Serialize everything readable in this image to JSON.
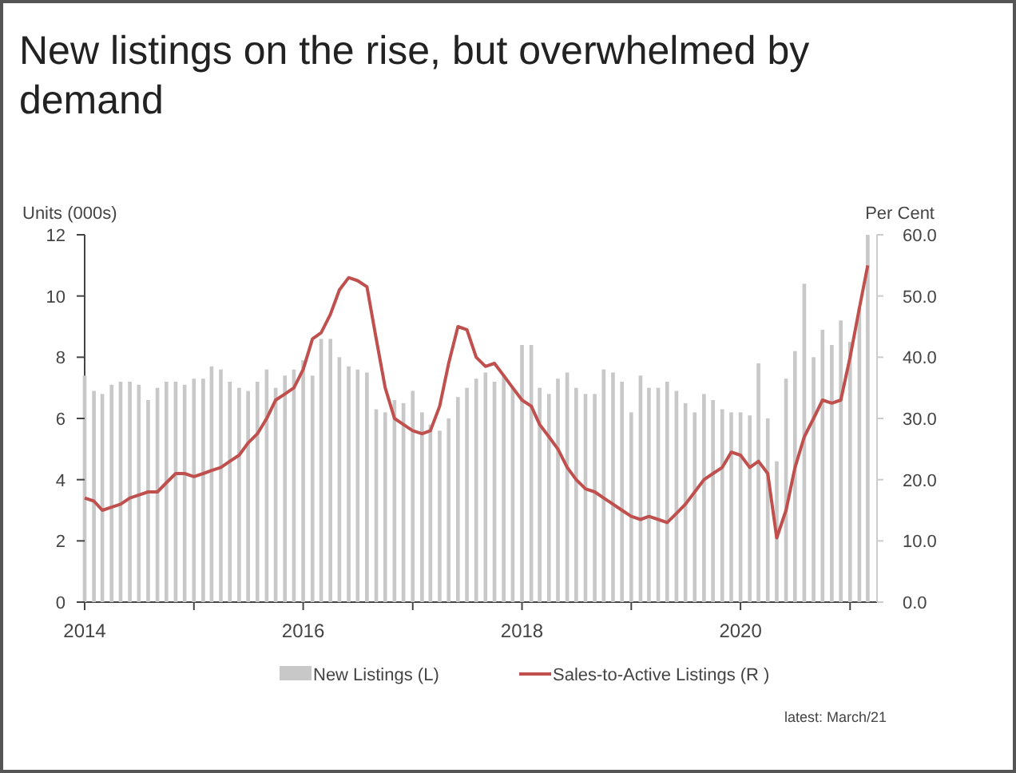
{
  "chart_data": {
    "type": "bar",
    "title": "New listings on the rise, but overwhelmed by demand",
    "ylabel": "Units (000s)",
    "y2label": "Per Cent",
    "x": [
      "2014-01",
      "2014-02",
      "2014-03",
      "2014-04",
      "2014-05",
      "2014-06",
      "2014-07",
      "2014-08",
      "2014-09",
      "2014-10",
      "2014-11",
      "2014-12",
      "2015-01",
      "2015-02",
      "2015-03",
      "2015-04",
      "2015-05",
      "2015-06",
      "2015-07",
      "2015-08",
      "2015-09",
      "2015-10",
      "2015-11",
      "2015-12",
      "2016-01",
      "2016-02",
      "2016-03",
      "2016-04",
      "2016-05",
      "2016-06",
      "2016-07",
      "2016-08",
      "2016-09",
      "2016-10",
      "2016-11",
      "2016-12",
      "2017-01",
      "2017-02",
      "2017-03",
      "2017-04",
      "2017-05",
      "2017-06",
      "2017-07",
      "2017-08",
      "2017-09",
      "2017-10",
      "2017-11",
      "2017-12",
      "2018-01",
      "2018-02",
      "2018-03",
      "2018-04",
      "2018-05",
      "2018-06",
      "2018-07",
      "2018-08",
      "2018-09",
      "2018-10",
      "2018-11",
      "2018-12",
      "2019-01",
      "2019-02",
      "2019-03",
      "2019-04",
      "2019-05",
      "2019-06",
      "2019-07",
      "2019-08",
      "2019-09",
      "2019-10",
      "2019-11",
      "2019-12",
      "2020-01",
      "2020-02",
      "2020-03",
      "2020-04",
      "2020-05",
      "2020-06",
      "2020-07",
      "2020-08",
      "2020-09",
      "2020-10",
      "2020-11",
      "2020-12",
      "2021-01",
      "2021-02",
      "2021-03"
    ],
    "series": [
      {
        "name": "New Listings (L)",
        "color": "#c8c8c8",
        "values": [
          7.4,
          6.9,
          6.8,
          7.1,
          7.2,
          7.2,
          7.1,
          6.6,
          7.0,
          7.2,
          7.2,
          7.1,
          7.3,
          7.3,
          7.7,
          7.6,
          7.2,
          7.0,
          6.9,
          7.2,
          7.6,
          7.0,
          7.4,
          7.6,
          7.9,
          7.4,
          8.6,
          8.6,
          8.0,
          7.7,
          7.6,
          7.5,
          6.3,
          6.2,
          6.6,
          6.5,
          6.9,
          6.2,
          5.8,
          5.6,
          6.0,
          6.7,
          7.0,
          7.3,
          7.5,
          7.2,
          7.4,
          7.0,
          8.4,
          8.4,
          7.0,
          6.8,
          7.3,
          7.5,
          7.0,
          6.8,
          6.8,
          7.6,
          7.5,
          7.2,
          6.2,
          7.4,
          7.0,
          7.0,
          7.2,
          6.9,
          6.5,
          6.2,
          6.8,
          6.6,
          6.3,
          6.2,
          6.2,
          6.1,
          7.8,
          6.0,
          4.6,
          7.3,
          8.2,
          10.4,
          8.0,
          8.9,
          8.4,
          9.2,
          8.5,
          9.6,
          12.0
        ]
      },
      {
        "name": "Sales-to-Active Listings (R )",
        "type": "line",
        "axis": "y2",
        "color": "#c0504d",
        "values": [
          17,
          16.5,
          15,
          15.5,
          16,
          17,
          17.5,
          18,
          18,
          19.5,
          21,
          21,
          20.5,
          21,
          21.5,
          22,
          23,
          24,
          26,
          27.5,
          30,
          33,
          34,
          35,
          38,
          43,
          44,
          47,
          51,
          53,
          52.5,
          51.5,
          43,
          35,
          30,
          29,
          28,
          27.5,
          28,
          32,
          39,
          45,
          44.5,
          40,
          38.5,
          39,
          37,
          35,
          33,
          32,
          29,
          27,
          25,
          22,
          20,
          18.5,
          18,
          17,
          16,
          15,
          14,
          13.5,
          14,
          13.5,
          13,
          14.5,
          16,
          18,
          20,
          21,
          22,
          24.5,
          24,
          22,
          23,
          21,
          10.5,
          15,
          22,
          27,
          30,
          33,
          32.5,
          33,
          40,
          48,
          55
        ]
      }
    ],
    "xlim": [
      "2014-01",
      "2021-04"
    ],
    "xticks": [
      {
        "value": "2014",
        "label": "2014"
      },
      {
        "value": "2015",
        "label": null
      },
      {
        "value": "2016",
        "label": "2016"
      },
      {
        "value": "2017",
        "label": null
      },
      {
        "value": "2018",
        "label": "2018"
      },
      {
        "value": "2019",
        "label": null
      },
      {
        "value": "2020",
        "label": "2020"
      },
      {
        "value": "2021",
        "label": null
      }
    ],
    "ylim": [
      0,
      12
    ],
    "yticks": [
      0,
      2,
      4,
      6,
      8,
      10,
      12
    ],
    "y2lim": [
      0,
      60
    ],
    "y2ticks": [
      {
        "value": 0,
        "label": "0.0"
      },
      {
        "value": 10,
        "label": "10.0"
      },
      {
        "value": 20,
        "label": "20.0"
      },
      {
        "value": 30,
        "label": "30.0"
      },
      {
        "value": 40,
        "label": "40.0"
      },
      {
        "value": 50,
        "label": "50.0"
      },
      {
        "value": 60,
        "label": "60.0"
      }
    ],
    "legend": "bottom",
    "grid": false,
    "annotations": [
      "latest: March/21"
    ]
  }
}
